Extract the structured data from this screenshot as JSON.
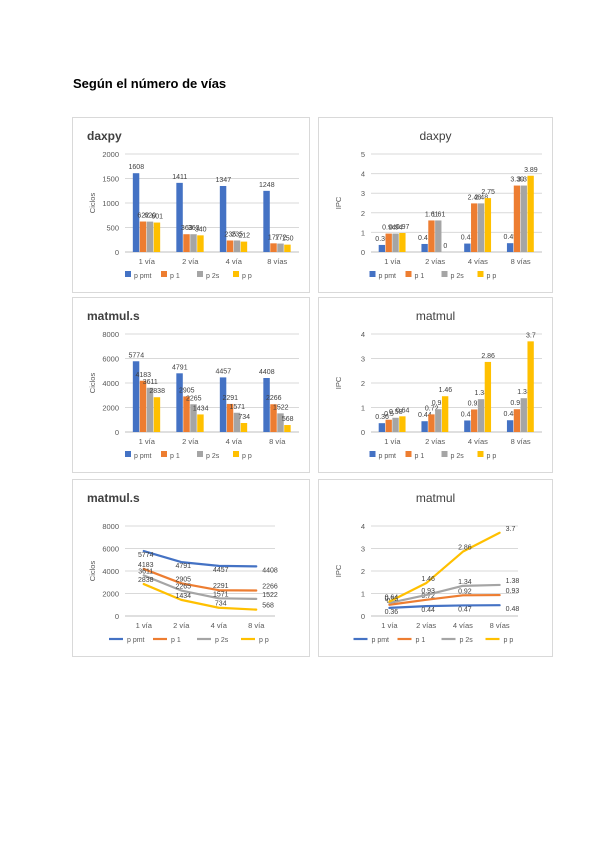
{
  "page": {
    "heading": "Según el número de vías"
  },
  "colors": {
    "p_pmt": "#4472c4",
    "p1": "#ed7d31",
    "p2s": "#a5a5a5",
    "pp": "#ffc000",
    "grid": "#d9d9d9",
    "axis": "#bfbfbf"
  },
  "chart_data": [
    {
      "id": "daxpy-ciclos",
      "type": "bar",
      "title": "daxpy",
      "title_align": "left",
      "xlabel": "",
      "ylabel": "Ciclos",
      "ylim": [
        0,
        2000
      ],
      "yticks": [
        0,
        500,
        1000,
        1500,
        2000
      ],
      "grid": true,
      "legend_position": "bottom",
      "categories": [
        "1 vía",
        "2 vía",
        "4 vía",
        "8 vías"
      ],
      "series": [
        {
          "name": "p pmt",
          "values": [
            1608,
            1411,
            1347,
            1248
          ],
          "labels": [
            "1608",
            "1411",
            "1347",
            "1248"
          ]
        },
        {
          "name": "p 1",
          "values": [
            622,
            363,
            235,
            177
          ],
          "labels": [
            "622",
            "363",
            "235",
            "177"
          ]
        },
        {
          "name": "p 2s",
          "values": [
            620,
            363,
            235,
            172
          ],
          "labels": [
            "620",
            "363",
            "235",
            "172"
          ]
        },
        {
          "name": "p p",
          "values": [
            601,
            340,
            212,
            150
          ],
          "labels": [
            "601",
            "340",
            "212",
            "150"
          ]
        }
      ]
    },
    {
      "id": "daxpy-ipc",
      "type": "bar",
      "title": "daxpy",
      "title_align": "center",
      "xlabel": "",
      "ylabel": "IPC",
      "ylim": [
        0,
        5
      ],
      "yticks": [
        0,
        1,
        2,
        3,
        4,
        5
      ],
      "grid": true,
      "legend_position": "bottom",
      "categories": [
        "1 vía",
        "2 vías",
        "4 vías",
        "8 vías"
      ],
      "series": [
        {
          "name": "p pmt",
          "values": [
            0.36,
            0.41,
            0.43,
            0.45
          ],
          "labels": [
            "0.36",
            "0.41",
            "0.43",
            "0.45"
          ]
        },
        {
          "name": "p 1",
          "values": [
            0.94,
            1.61,
            2.48,
            3.39
          ],
          "labels": [
            "0.94",
            "1.61",
            "2.48",
            "3.39"
          ]
        },
        {
          "name": "p 2s",
          "values": [
            0.94,
            1.61,
            2.48,
            3.39
          ],
          "labels": [
            "0.94",
            "1.61",
            "2.48",
            "3.39"
          ]
        },
        {
          "name": "p p",
          "values": [
            0.97,
            0,
            2.75,
            3.89
          ],
          "labels": [
            "0.97",
            "0",
            "2.75",
            "3.89"
          ]
        }
      ]
    },
    {
      "id": "matmul-ciclos-bar",
      "type": "bar",
      "title": "matmul.s",
      "title_align": "left",
      "xlabel": "",
      "ylabel": "Ciclos",
      "ylim": [
        0,
        8000
      ],
      "yticks": [
        0,
        2000,
        4000,
        6000,
        8000
      ],
      "grid": true,
      "legend_position": "bottom",
      "categories": [
        "1 vía",
        "2 vía",
        "4 vía",
        "8 vía"
      ],
      "series": [
        {
          "name": "p pmt",
          "values": [
            5774,
            4791,
            4457,
            4408
          ],
          "labels": [
            "5774",
            "4791",
            "4457",
            "4408"
          ]
        },
        {
          "name": "p 1",
          "values": [
            4183,
            2905,
            2291,
            2266
          ],
          "labels": [
            "4183",
            "2905",
            "2291",
            "2266"
          ]
        },
        {
          "name": "p 2s",
          "values": [
            3611,
            2265,
            1571,
            1522
          ],
          "labels": [
            "3611",
            "2265",
            "1571",
            "1522"
          ]
        },
        {
          "name": "p p",
          "values": [
            2838,
            1434,
            734,
            568
          ],
          "labels": [
            "2838",
            "1434",
            "734",
            "568"
          ]
        }
      ]
    },
    {
      "id": "matmul-ipc-bar",
      "type": "bar",
      "title": "matmul",
      "title_align": "center",
      "xlabel": "",
      "ylabel": "IPC",
      "ylim": [
        0,
        4
      ],
      "yticks": [
        0,
        1,
        2,
        3,
        4
      ],
      "grid": true,
      "legend_position": "bottom",
      "categories": [
        "1 vía",
        "2 vías",
        "4 vías",
        "8 vías"
      ],
      "series": [
        {
          "name": "p pmt",
          "values": [
            0.36,
            0.44,
            0.47,
            0.48
          ],
          "labels": [
            "0.36",
            "0.44",
            "0.47",
            "0.48"
          ]
        },
        {
          "name": "p 1",
          "values": [
            0.5,
            0.72,
            0.92,
            0.93
          ],
          "labels": [
            "0.5",
            "0.72",
            "0.92",
            "0.93"
          ]
        },
        {
          "name": "p 2s",
          "values": [
            0.58,
            0.93,
            1.34,
            1.38
          ],
          "labels": [
            "0.58",
            "0.93",
            "1.34",
            "1.38"
          ]
        },
        {
          "name": "p p",
          "values": [
            0.64,
            1.46,
            2.86,
            3.7
          ],
          "labels": [
            "0.64",
            "1.46",
            "2.86",
            "3.7"
          ]
        }
      ]
    },
    {
      "id": "matmul-ciclos-line",
      "type": "line",
      "title": "matmul.s",
      "title_align": "left",
      "xlabel": "",
      "ylabel": "Ciclos",
      "ylim": [
        0,
        8000
      ],
      "yticks": [
        0,
        2000,
        4000,
        6000,
        8000
      ],
      "grid": true,
      "legend_position": "bottom",
      "categories": [
        "1 vía",
        "2 vía",
        "4 vía",
        "8 vía"
      ],
      "series": [
        {
          "name": "p pmt",
          "values": [
            5774,
            4791,
            4457,
            4408
          ],
          "labels": [
            "5774",
            "4791",
            "4457",
            "4408"
          ]
        },
        {
          "name": "p 1",
          "values": [
            4183,
            2905,
            2291,
            2266
          ],
          "labels": [
            "4183",
            "2905",
            "2291",
            "2266"
          ]
        },
        {
          "name": "p 2s",
          "values": [
            3611,
            2265,
            1571,
            1522
          ],
          "labels": [
            "3611",
            "2265",
            "1571",
            "1522"
          ]
        },
        {
          "name": "p p",
          "values": [
            2838,
            1434,
            734,
            568
          ],
          "labels": [
            "2838",
            "1434",
            "734",
            "568"
          ]
        }
      ]
    },
    {
      "id": "matmul-ipc-line",
      "type": "line",
      "title": "matmul",
      "title_align": "center",
      "xlabel": "",
      "ylabel": "IPC",
      "ylim": [
        0,
        4
      ],
      "yticks": [
        0,
        1,
        2,
        3,
        4
      ],
      "grid": true,
      "legend_position": "bottom",
      "categories": [
        "1 vía",
        "2 vías",
        "4 vías",
        "8 vías"
      ],
      "series": [
        {
          "name": "p pmt",
          "values": [
            0.36,
            0.44,
            0.47,
            0.48
          ],
          "labels": [
            "0.36",
            "0.44",
            "0.47",
            "0.48"
          ]
        },
        {
          "name": "p 1",
          "values": [
            0.5,
            0.72,
            0.92,
            0.93
          ],
          "labels": [
            "0.5",
            "0.72",
            "0.92",
            "0.93"
          ]
        },
        {
          "name": "p 2s",
          "values": [
            0.58,
            0.93,
            1.34,
            1.38
          ],
          "labels": [
            "0.58",
            "0.93",
            "1.34",
            "1.38"
          ]
        },
        {
          "name": "p p",
          "values": [
            0.64,
            1.46,
            2.86,
            3.7
          ],
          "labels": [
            "0.64",
            "1.46",
            "2.86",
            "3.7"
          ]
        }
      ]
    }
  ]
}
